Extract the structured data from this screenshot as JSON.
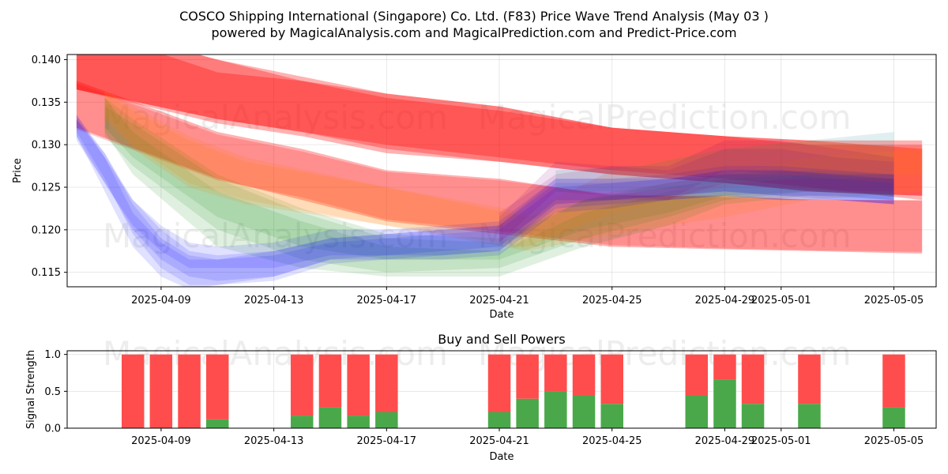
{
  "chart_data": [
    {
      "type": "area",
      "title": "COSCO Shipping International (Singapore) Co. Ltd. (F83) Price Wave Trend Analysis (May 03 )",
      "subtitle": "powered by MagicalAnalysis.com and MagicalPrediction.com and Predict-Price.com",
      "xlabel": "Date",
      "ylabel": "Price",
      "ylim": [
        0.1133,
        0.1406
      ],
      "xlim": [
        "2025-04-05T16:00",
        "2025-05-06T12:00"
      ],
      "grid": true,
      "x_ticks": [
        "2025-04-09",
        "2025-04-13",
        "2025-04-17",
        "2025-04-21",
        "2025-04-25",
        "2025-04-29",
        "2025-05-01",
        "2025-05-05"
      ],
      "y_ticks": [
        0.115,
        0.12,
        0.125,
        0.13,
        0.135,
        0.14
      ],
      "watermarks": [
        "MagicalAnalysis.com",
        "MagicalPrediction.com",
        "MagicalAnalysis.com",
        "MagicalPrediction.com"
      ],
      "series": [
        {
          "name": "red band 1",
          "color": "#ff0000",
          "opacity": 0.3,
          "x": [
            "2025-04-06",
            "2025-04-11",
            "2025-04-14",
            "2025-04-17",
            "2025-04-21",
            "2025-04-25",
            "2025-04-29",
            "2025-05-02",
            "2025-05-06"
          ],
          "lower": [
            0.1365,
            0.133,
            0.1315,
            0.13,
            0.1285,
            0.127,
            0.126,
            0.125,
            0.1235
          ],
          "upper": [
            0.1445,
            0.14,
            0.138,
            0.136,
            0.1345,
            0.132,
            0.131,
            0.1305,
            0.1305
          ]
        },
        {
          "name": "red band 2",
          "color": "#ff0000",
          "opacity": 0.3,
          "x": [
            "2025-04-06",
            "2025-04-11",
            "2025-04-14",
            "2025-04-17",
            "2025-04-21",
            "2025-04-25",
            "2025-04-29",
            "2025-05-02",
            "2025-05-06"
          ],
          "lower": [
            0.1365,
            0.1325,
            0.131,
            0.129,
            0.128,
            0.1265,
            0.1255,
            0.1245,
            0.124
          ],
          "upper": [
            0.144,
            0.1385,
            0.1375,
            0.1355,
            0.134,
            0.132,
            0.131,
            0.13,
            0.13
          ]
        },
        {
          "name": "red band 3",
          "color": "#ff0000",
          "opacity": 0.3,
          "x": [
            "2025-04-06",
            "2025-04-11",
            "2025-04-14",
            "2025-04-17",
            "2025-04-21",
            "2025-04-25",
            "2025-04-29",
            "2025-05-02",
            "2025-05-06"
          ],
          "lower": [
            0.1365,
            0.133,
            0.1315,
            0.1295,
            0.128,
            0.1265,
            0.1255,
            0.1245,
            0.124
          ],
          "upper": [
            0.1445,
            0.14,
            0.1375,
            0.136,
            0.1345,
            0.132,
            0.131,
            0.1305,
            0.1295
          ]
        },
        {
          "name": "red band 4",
          "color": "#ff0000",
          "opacity": 0.3,
          "x": [
            "2025-04-06",
            "2025-04-11",
            "2025-04-14",
            "2025-04-17",
            "2025-04-21",
            "2025-04-25",
            "2025-04-29",
            "2025-05-02",
            "2025-05-06"
          ],
          "lower": [
            0.132,
            0.126,
            0.1235,
            0.121,
            0.1195,
            0.118,
            0.1177,
            0.1175,
            0.1172
          ],
          "upper": [
            0.1375,
            0.1315,
            0.1295,
            0.127,
            0.126,
            0.124,
            0.124,
            0.1235,
            0.1235
          ]
        },
        {
          "name": "red band 5",
          "color": "#ff0000",
          "opacity": 0.2,
          "x": [
            "2025-04-06",
            "2025-04-11",
            "2025-04-14",
            "2025-04-17",
            "2025-04-21",
            "2025-04-25",
            "2025-04-29",
            "2025-05-02",
            "2025-05-06"
          ],
          "lower": [
            0.1318,
            0.1258,
            0.1238,
            0.1212,
            0.1198,
            0.1182,
            0.1178,
            0.1176,
            0.1174
          ],
          "upper": [
            0.1372,
            0.1312,
            0.1292,
            0.1268,
            0.1258,
            0.1242,
            0.1238,
            0.1236,
            0.1234
          ]
        },
        {
          "name": "green band 1",
          "color": "#008000",
          "opacity": 0.12,
          "x": [
            "2025-04-07",
            "2025-04-08",
            "2025-04-11",
            "2025-04-14",
            "2025-04-17",
            "2025-04-21",
            "2025-04-24",
            "2025-04-27",
            "2025-04-29",
            "2025-05-02",
            "2025-05-05"
          ],
          "lower": [
            0.132,
            0.1285,
            0.1215,
            0.118,
            0.1165,
            0.1165,
            0.12,
            0.122,
            0.124,
            0.1245,
            0.124
          ],
          "upper": [
            0.1345,
            0.1325,
            0.126,
            0.122,
            0.119,
            0.1185,
            0.1235,
            0.125,
            0.126,
            0.1265,
            0.126
          ]
        },
        {
          "name": "green band 2",
          "color": "#008000",
          "opacity": 0.12,
          "x": [
            "2025-04-07",
            "2025-04-08",
            "2025-04-11",
            "2025-04-14",
            "2025-04-17",
            "2025-04-21",
            "2025-04-24",
            "2025-04-27",
            "2025-04-29",
            "2025-05-02",
            "2025-05-05"
          ],
          "lower": [
            0.131,
            0.1275,
            0.12,
            0.1165,
            0.115,
            0.1155,
            0.119,
            0.1215,
            0.1235,
            0.1245,
            0.124
          ],
          "upper": [
            0.1355,
            0.133,
            0.1265,
            0.1225,
            0.1195,
            0.119,
            0.1235,
            0.1255,
            0.1265,
            0.127,
            0.1265
          ]
        },
        {
          "name": "green band 3",
          "color": "#008000",
          "opacity": 0.12,
          "x": [
            "2025-04-07",
            "2025-04-08",
            "2025-04-11",
            "2025-04-14",
            "2025-04-17",
            "2025-04-21",
            "2025-04-24",
            "2025-04-27",
            "2025-04-29",
            "2025-05-02",
            "2025-05-05"
          ],
          "lower": [
            0.1315,
            0.1265,
            0.118,
            0.1155,
            0.1145,
            0.1145,
            0.118,
            0.1205,
            0.123,
            0.124,
            0.1235
          ],
          "upper": [
            0.1355,
            0.1315,
            0.1245,
            0.121,
            0.118,
            0.1175,
            0.122,
            0.1245,
            0.1255,
            0.126,
            0.126
          ]
        },
        {
          "name": "orange band 1",
          "color": "#ff8000",
          "opacity": 0.15,
          "x": [
            "2025-04-07",
            "2025-04-08",
            "2025-04-10",
            "2025-04-12",
            "2025-04-22",
            "2025-04-25",
            "2025-04-29",
            "2025-05-02",
            "2025-05-06"
          ],
          "lower": [
            0.1335,
            0.13,
            0.1255,
            0.1235,
            0.1175,
            0.1195,
            0.1215,
            0.1235,
            0.1245
          ],
          "upper": [
            0.1365,
            0.1345,
            0.131,
            0.1285,
            0.1215,
            0.1245,
            0.1265,
            0.1285,
            0.1295
          ]
        },
        {
          "name": "orange band 2",
          "color": "#ff8000",
          "opacity": 0.15,
          "x": [
            "2025-04-07",
            "2025-04-08",
            "2025-04-10",
            "2025-04-12",
            "2025-04-22",
            "2025-04-25",
            "2025-04-29",
            "2025-05-02",
            "2025-05-06"
          ],
          "lower": [
            0.133,
            0.1295,
            0.125,
            0.123,
            0.118,
            0.122,
            0.125,
            0.1265,
            0.1265
          ],
          "upper": [
            0.136,
            0.134,
            0.1305,
            0.128,
            0.122,
            0.127,
            0.1295,
            0.1305,
            0.1295
          ]
        },
        {
          "name": "blue band 1",
          "color": "#0000ff",
          "opacity": 0.12,
          "x": [
            "2025-04-06",
            "2025-04-07",
            "2025-04-08",
            "2025-04-09",
            "2025-04-10",
            "2025-04-11",
            "2025-04-13",
            "2025-04-15",
            "2025-04-17",
            "2025-04-19",
            "2025-04-21",
            "2025-04-23",
            "2025-04-25",
            "2025-04-27",
            "2025-04-29",
            "2025-05-01",
            "2025-05-03",
            "2025-05-05"
          ],
          "lower": [
            0.131,
            0.1255,
            0.1205,
            0.1175,
            0.1155,
            0.1155,
            0.1155,
            0.117,
            0.117,
            0.1175,
            0.118,
            0.1235,
            0.1235,
            0.124,
            0.1245,
            0.124,
            0.1235,
            0.123
          ],
          "upper": [
            0.133,
            0.1285,
            0.1235,
            0.1205,
            0.1185,
            0.118,
            0.1185,
            0.12,
            0.12,
            0.1205,
            0.121,
            0.126,
            0.126,
            0.1265,
            0.1275,
            0.1275,
            0.127,
            0.1265
          ]
        },
        {
          "name": "blue band 2",
          "color": "#0000ff",
          "opacity": 0.12,
          "x": [
            "2025-04-06",
            "2025-04-07",
            "2025-04-08",
            "2025-04-09",
            "2025-04-10",
            "2025-04-11",
            "2025-04-13",
            "2025-04-15",
            "2025-04-17",
            "2025-04-19",
            "2025-04-21",
            "2025-04-23",
            "2025-04-25",
            "2025-04-27",
            "2025-04-29",
            "2025-05-01",
            "2025-05-03",
            "2025-05-05"
          ],
          "lower": [
            0.1305,
            0.1255,
            0.12,
            0.1165,
            0.1145,
            0.114,
            0.1145,
            0.1165,
            0.117,
            0.117,
            0.1175,
            0.123,
            0.1235,
            0.124,
            0.1245,
            0.124,
            0.124,
            0.1235
          ],
          "upper": [
            0.133,
            0.129,
            0.1235,
            0.12,
            0.1175,
            0.117,
            0.1175,
            0.119,
            0.1195,
            0.12,
            0.1205,
            0.126,
            0.126,
            0.126,
            0.127,
            0.127,
            0.1265,
            0.126
          ]
        },
        {
          "name": "blue band 3",
          "color": "#0000ff",
          "opacity": 0.12,
          "x": [
            "2025-04-06",
            "2025-04-07",
            "2025-04-08",
            "2025-04-09",
            "2025-04-10",
            "2025-04-11",
            "2025-04-13",
            "2025-04-15",
            "2025-04-17",
            "2025-04-19",
            "2025-04-21",
            "2025-04-23",
            "2025-04-25",
            "2025-04-27",
            "2025-04-29",
            "2025-05-01",
            "2025-05-03",
            "2025-05-05"
          ],
          "lower": [
            0.1315,
            0.126,
            0.1195,
            0.1155,
            0.1135,
            0.1135,
            0.114,
            0.116,
            0.1165,
            0.1165,
            0.117,
            0.122,
            0.1225,
            0.1235,
            0.124,
            0.1235,
            0.1235,
            0.123
          ],
          "upper": [
            0.1335,
            0.129,
            0.123,
            0.119,
            0.117,
            0.1165,
            0.117,
            0.1185,
            0.119,
            0.1195,
            0.12,
            0.125,
            0.1255,
            0.126,
            0.1265,
            0.1265,
            0.126,
            0.1255
          ]
        },
        {
          "name": "blue band 4",
          "color": "#0000ff",
          "opacity": 0.12,
          "x": [
            "2025-04-06",
            "2025-04-07",
            "2025-04-08",
            "2025-04-09",
            "2025-04-10",
            "2025-04-11",
            "2025-04-13",
            "2025-04-15",
            "2025-04-17",
            "2025-04-19",
            "2025-04-21",
            "2025-04-23",
            "2025-04-25",
            "2025-04-27",
            "2025-04-29",
            "2025-05-01",
            "2025-05-03",
            "2025-05-05"
          ],
          "lower": [
            0.131,
            0.1245,
            0.118,
            0.1145,
            0.113,
            0.1135,
            0.1145,
            0.1165,
            0.1165,
            0.117,
            0.1175,
            0.1225,
            0.123,
            0.1235,
            0.124,
            0.1235,
            0.1235,
            0.123
          ],
          "upper": [
            0.1335,
            0.1285,
            0.122,
            0.1185,
            0.1165,
            0.1165,
            0.1175,
            0.119,
            0.1195,
            0.12,
            0.1205,
            0.1255,
            0.1255,
            0.126,
            0.127,
            0.127,
            0.1265,
            0.1265
          ]
        },
        {
          "name": "purple band 1",
          "color": "#800080",
          "opacity": 0.12,
          "x": [
            "2025-04-21",
            "2025-04-23",
            "2025-04-25",
            "2025-04-27",
            "2025-04-29",
            "2025-05-01",
            "2025-05-03",
            "2025-05-05"
          ],
          "lower": [
            0.1185,
            0.1245,
            0.124,
            0.1235,
            0.1255,
            0.125,
            0.1245,
            0.1245
          ],
          "upper": [
            0.1215,
            0.128,
            0.1275,
            0.127,
            0.1295,
            0.1295,
            0.1285,
            0.128
          ]
        },
        {
          "name": "purple band 2",
          "color": "#800080",
          "opacity": 0.12,
          "x": [
            "2025-04-21",
            "2025-04-23",
            "2025-04-25",
            "2025-04-27",
            "2025-04-29",
            "2025-05-01",
            "2025-05-03",
            "2025-05-05"
          ],
          "lower": [
            0.1185,
            0.123,
            0.1235,
            0.1235,
            0.127,
            0.1265,
            0.126,
            0.1255
          ],
          "upper": [
            0.122,
            0.1265,
            0.1275,
            0.1275,
            0.1305,
            0.1305,
            0.1295,
            0.1285
          ]
        },
        {
          "name": "teal band",
          "color": "#008080",
          "opacity": 0.12,
          "x": [
            "2025-04-23",
            "2025-04-26",
            "2025-04-29",
            "2025-05-02",
            "2025-05-05"
          ],
          "lower": [
            0.1245,
            0.1245,
            0.1255,
            0.126,
            0.126
          ],
          "upper": [
            0.127,
            0.1275,
            0.1295,
            0.1305,
            0.1315
          ]
        }
      ]
    },
    {
      "type": "bar",
      "title": "Buy and Sell Powers",
      "xlabel": "Date",
      "ylabel": "Signal Strength",
      "ylim": [
        0,
        1.05
      ],
      "y_ticks": [
        0.0,
        0.5,
        1.0
      ],
      "y_tick_labels": [
        "0.0",
        "0.5",
        "1.0"
      ],
      "x_ticks": [
        "2025-04-09",
        "2025-04-13",
        "2025-04-17",
        "2025-04-21",
        "2025-04-25",
        "2025-04-29",
        "2025-05-01",
        "2025-05-05"
      ],
      "buy_color": "#4aa84a",
      "sell_color": "#ff4d4d",
      "dates": [
        "2025-04-08",
        "2025-04-09",
        "2025-04-10",
        "2025-04-11",
        "2025-04-14",
        "2025-04-15",
        "2025-04-16",
        "2025-04-17",
        "2025-04-21",
        "2025-04-22",
        "2025-04-23",
        "2025-04-24",
        "2025-04-25",
        "2025-04-28",
        "2025-04-29",
        "2025-04-30",
        "2025-05-02",
        "2025-05-05"
      ],
      "buy": [
        0,
        0,
        0,
        0.12,
        0.17,
        0.28,
        0.17,
        0.22,
        0.22,
        0.4,
        0.5,
        0.45,
        0.33,
        0.45,
        0.66,
        0.33,
        0.33,
        0.28
      ],
      "sell": [
        1,
        1,
        1,
        0.88,
        0.83,
        0.72,
        0.83,
        0.78,
        0.78,
        0.6,
        0.5,
        0.55,
        0.67,
        0.55,
        0.34,
        0.67,
        0.67,
        0.72
      ]
    }
  ]
}
